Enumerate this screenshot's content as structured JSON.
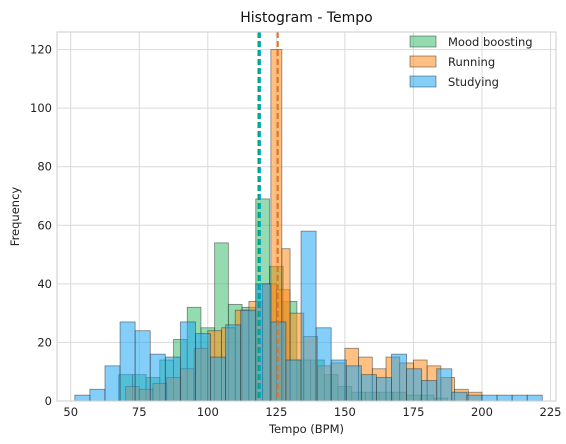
{
  "chart_data": {
    "type": "histogram",
    "title": "Histogram - Tempo",
    "xlabel": "Tempo (BPM)",
    "ylabel": "Frequency",
    "xlim": [
      45,
      227
    ],
    "ylim": [
      0,
      126
    ],
    "xticks": [
      50,
      75,
      100,
      125,
      150,
      175,
      200,
      225
    ],
    "yticks": [
      0,
      20,
      40,
      60,
      80,
      100,
      120
    ],
    "grid": true,
    "legend_position": "top-right",
    "series": [
      {
        "name": "Mood boosting",
        "color": "#3cbf6d",
        "mean_line": 118.5,
        "line_color": "#00a86b",
        "bins": [
          [
            67.5,
            72.5,
            9
          ],
          [
            72.5,
            77.5,
            9
          ],
          [
            77.5,
            82.5,
            8
          ],
          [
            82.5,
            87.5,
            14
          ],
          [
            87.5,
            92.5,
            21
          ],
          [
            92.5,
            97.5,
            32
          ],
          [
            97.5,
            102.5,
            25
          ],
          [
            102.5,
            107.5,
            54
          ],
          [
            107.5,
            112.5,
            33
          ],
          [
            112.5,
            117.5,
            32
          ],
          [
            117.5,
            122.5,
            69
          ],
          [
            122.5,
            127.5,
            46
          ],
          [
            127.5,
            132.5,
            34
          ],
          [
            132.5,
            137.5,
            14
          ],
          [
            137.5,
            142.5,
            14
          ],
          [
            142.5,
            147.5,
            9
          ],
          [
            147.5,
            152.5,
            5
          ],
          [
            152.5,
            157.5,
            3
          ],
          [
            157.5,
            162.5,
            3
          ],
          [
            162.5,
            167.5,
            3
          ],
          [
            167.5,
            172.5,
            3
          ],
          [
            172.5,
            177.5,
            2
          ],
          [
            177.5,
            182.5,
            2
          ],
          [
            182.5,
            187.5,
            1
          ]
        ]
      },
      {
        "name": "Running",
        "color": "#ff8c1a",
        "mean_line": 125.5,
        "line_color": "#e8711a",
        "bins": [
          [
            70,
            75,
            5
          ],
          [
            75,
            80,
            4
          ],
          [
            80,
            85,
            6
          ],
          [
            85,
            90,
            8
          ],
          [
            90,
            95,
            11
          ],
          [
            95,
            100,
            18
          ],
          [
            100,
            105,
            24
          ],
          [
            105,
            110,
            25
          ],
          [
            110,
            115,
            31
          ],
          [
            115,
            120,
            34
          ],
          [
            120,
            125,
            40
          ],
          [
            125,
            130,
            38
          ],
          [
            130,
            135,
            30
          ],
          [
            135,
            140,
            22
          ],
          [
            140,
            145,
            12
          ],
          [
            145,
            150,
            13
          ],
          [
            150,
            155,
            18
          ],
          [
            155,
            160,
            15
          ],
          [
            160,
            165,
            11
          ],
          [
            165,
            170,
            15
          ],
          [
            170,
            175,
            13
          ],
          [
            175,
            180,
            14
          ],
          [
            180,
            185,
            12
          ],
          [
            185,
            190,
            8
          ],
          [
            190,
            195,
            4
          ],
          [
            195,
            200,
            3
          ],
          [
            123,
            127,
            120
          ],
          [
            127,
            130,
            52
          ]
        ]
      },
      {
        "name": "Studying",
        "color": "#1ea7f5",
        "mean_line": 119,
        "line_color": "#00a0d8",
        "bins": [
          [
            51.5,
            57,
            2
          ],
          [
            57,
            62.5,
            4
          ],
          [
            62.5,
            68,
            12
          ],
          [
            68,
            73.5,
            27
          ],
          [
            73.5,
            79,
            24
          ],
          [
            79,
            84.5,
            16
          ],
          [
            84.5,
            90,
            15
          ],
          [
            90,
            95.5,
            27
          ],
          [
            95.5,
            101,
            23
          ],
          [
            101,
            106.5,
            15
          ],
          [
            106.5,
            112,
            26
          ],
          [
            112,
            117.5,
            31
          ],
          [
            117.5,
            123,
            40
          ],
          [
            123,
            128.5,
            27
          ],
          [
            128.5,
            134,
            14
          ],
          [
            134,
            139.5,
            58
          ],
          [
            139.5,
            145,
            25
          ],
          [
            145,
            150.5,
            14
          ],
          [
            150.5,
            156,
            12
          ],
          [
            156,
            161.5,
            9
          ],
          [
            161.5,
            167,
            8
          ],
          [
            167,
            172.5,
            16
          ],
          [
            172.5,
            178,
            11
          ],
          [
            178,
            183.5,
            7
          ],
          [
            183.5,
            189,
            11
          ],
          [
            189,
            194.5,
            3
          ],
          [
            194.5,
            200,
            2
          ],
          [
            200,
            205.5,
            2
          ],
          [
            205.5,
            211,
            2
          ],
          [
            211,
            216.5,
            2
          ],
          [
            216.5,
            222,
            2
          ]
        ]
      }
    ]
  }
}
